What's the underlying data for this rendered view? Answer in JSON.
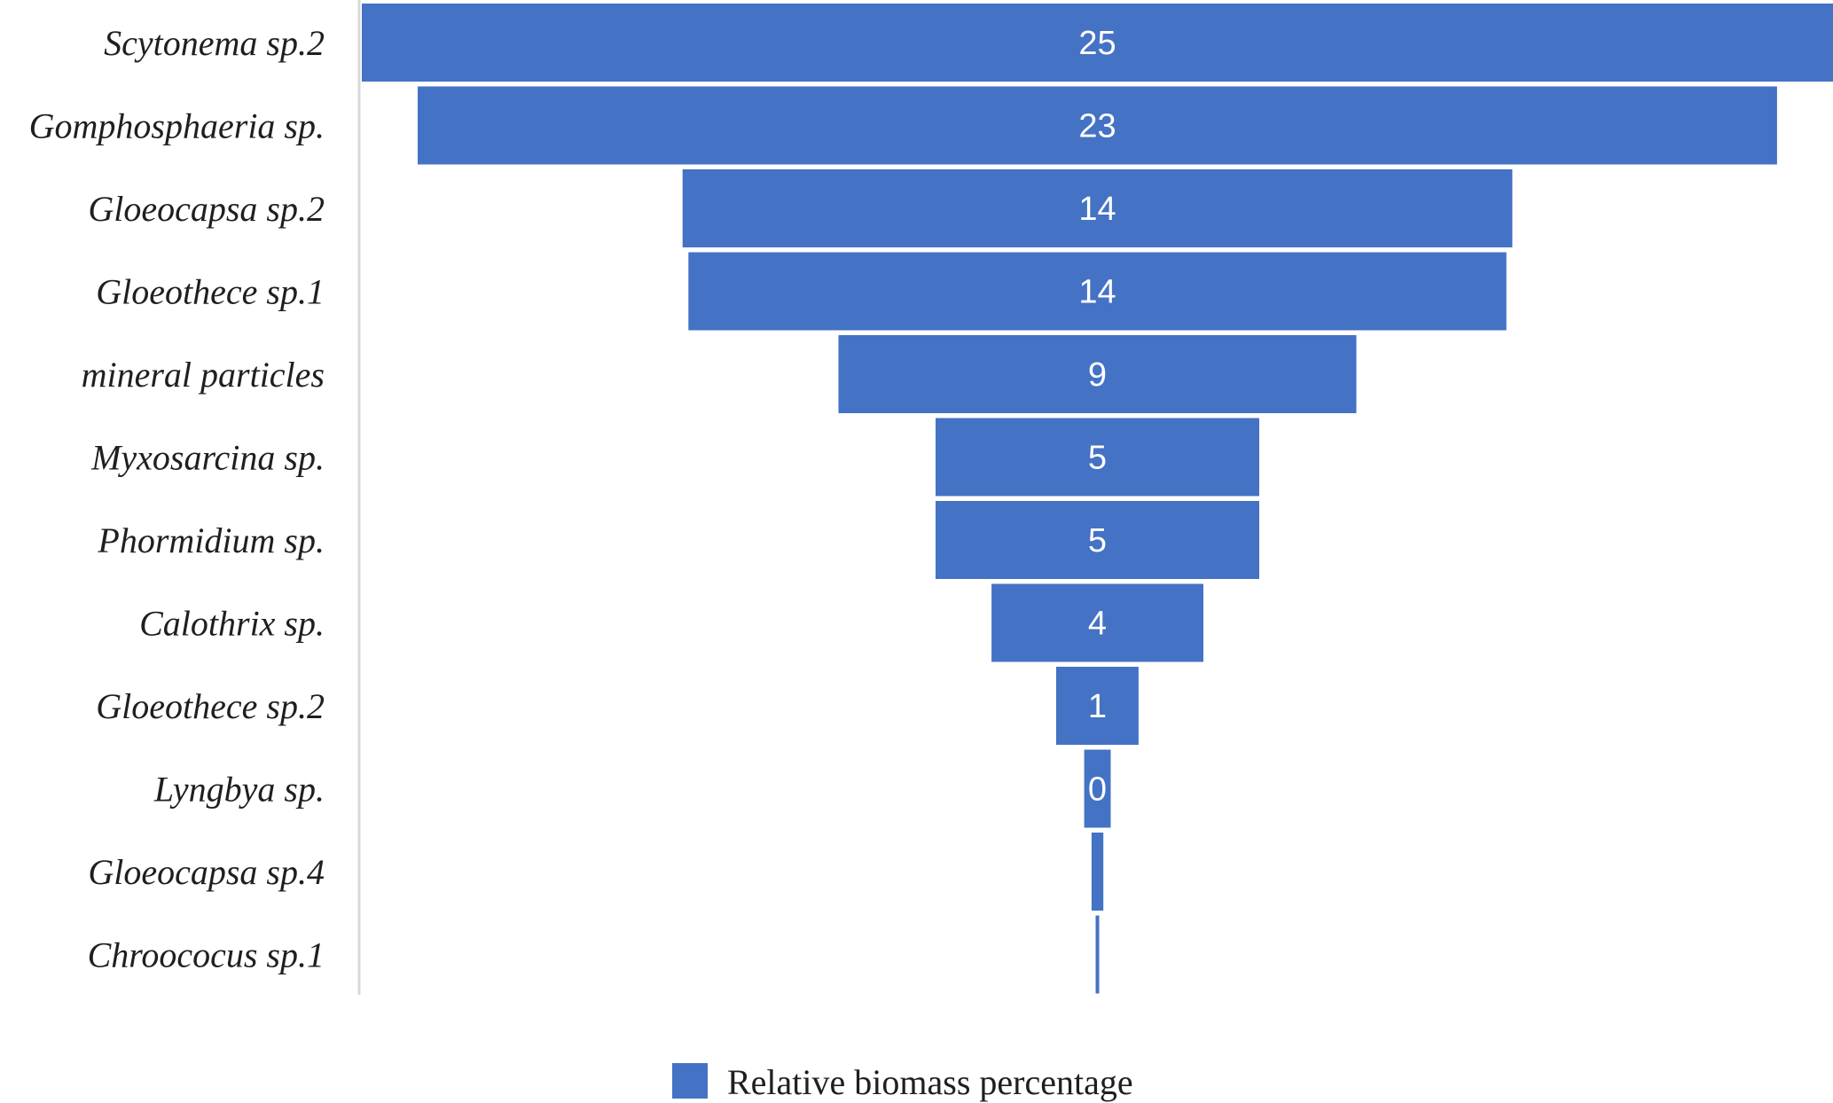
{
  "chart_data": {
    "type": "bar",
    "orientation": "horizontal-centered-funnel",
    "categories": [
      "Scytonema sp.2",
      "Gomphosphaeria sp.",
      "Gloeocapsa sp.2",
      "Gloeothece sp.1",
      "mineral particles",
      "Myxosarcina sp.",
      "Phormidium sp.",
      "Calothrix sp.",
      "Gloeothece sp.2",
      "Lyngbya sp.",
      "Gloeocapsa sp.4",
      "Chroococus sp.1"
    ],
    "series": [
      {
        "name": "Relative biomass percentage",
        "values": [
          25,
          23,
          14,
          14,
          9,
          5,
          5,
          4,
          1,
          0,
          0,
          0
        ],
        "value_labels": [
          "25",
          "23",
          "14",
          "14",
          "9",
          "5",
          "5",
          "4",
          "1",
          "0",
          "",
          ""
        ],
        "shown_values": [
          25,
          23.1,
          14.1,
          13.9,
          8.8,
          5.5,
          5.5,
          3.6,
          1.4,
          0.45,
          0.2,
          0.06
        ],
        "color": "#4472c4"
      }
    ],
    "xlim": [
      0,
      25
    ],
    "grid": false,
    "legend": {
      "position": "bottom-center",
      "entries": [
        "Relative biomass percentage"
      ]
    },
    "title": "",
    "xlabel": "",
    "ylabel": ""
  }
}
